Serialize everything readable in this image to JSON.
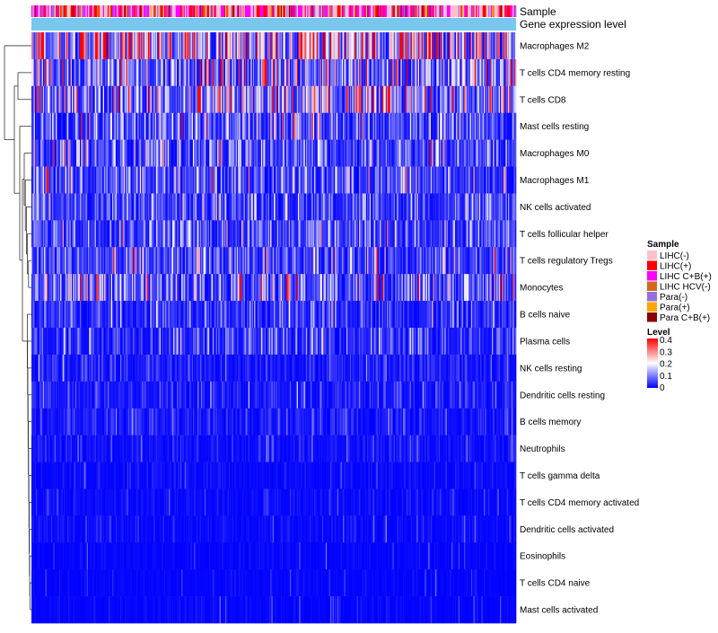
{
  "chart_data": {
    "type": "heatmap",
    "title": "",
    "annotation_tracks": [
      "Sample",
      "Gene expression level"
    ],
    "rows": [
      {
        "name": "Macrophages M2",
        "mean": 0.22
      },
      {
        "name": "T cells CD4 memory resting",
        "mean": 0.12
      },
      {
        "name": "T cells CD8",
        "mean": 0.12
      },
      {
        "name": "Mast cells resting",
        "mean": 0.07
      },
      {
        "name": "Macrophages M0",
        "mean": 0.07
      },
      {
        "name": "Macrophages M1",
        "mean": 0.07
      },
      {
        "name": "NK cells activated",
        "mean": 0.06
      },
      {
        "name": "T cells follicular helper",
        "mean": 0.07
      },
      {
        "name": "T cells regulatory  Tregs",
        "mean": 0.07
      },
      {
        "name": "Monocytes",
        "mean": 0.09
      },
      {
        "name": "B cells naive",
        "mean": 0.04
      },
      {
        "name": "Plasma cells",
        "mean": 0.05
      },
      {
        "name": "NK cells resting",
        "mean": 0.025
      },
      {
        "name": "Dendritic cells resting",
        "mean": 0.025
      },
      {
        "name": "B cells memory",
        "mean": 0.02
      },
      {
        "name": "Neutrophils",
        "mean": 0.015
      },
      {
        "name": "T cells gamma delta",
        "mean": 0.01
      },
      {
        "name": "T cells CD4 memory activated",
        "mean": 0.01
      },
      {
        "name": "Dendritic cells activated",
        "mean": 0.01
      },
      {
        "name": "Eosinophils",
        "mean": 0.005
      },
      {
        "name": "T cells CD4 naive",
        "mean": 0.005
      },
      {
        "name": "Mast cells activated",
        "mean": 0.005
      }
    ],
    "sample_legend": {
      "title": "Sample",
      "entries": [
        {
          "label": "LIHC(-)",
          "color": "#ffc0cb"
        },
        {
          "label": "LIHC(+)",
          "color": "#ff0000"
        },
        {
          "label": "LIHC C+B(+)",
          "color": "#ff00ff"
        },
        {
          "label": "LIHC HCV(-)",
          "color": "#d2691e"
        },
        {
          "label": "Para(-)",
          "color": "#9370db"
        },
        {
          "label": "Para(+)",
          "color": "#ffa500"
        },
        {
          "label": "Para C+B(+)",
          "color": "#8b0000"
        }
      ]
    },
    "level_legend": {
      "title": "Level",
      "range": [
        0,
        0.4
      ],
      "ticks": [
        "0.4",
        "0.3",
        "0.2",
        "0.1",
        "0"
      ],
      "colors": [
        "#ff0000",
        "#ffffff",
        "#0000ff"
      ]
    },
    "gene_expression_color": "#79c7ee",
    "n_samples_approx": 420
  }
}
